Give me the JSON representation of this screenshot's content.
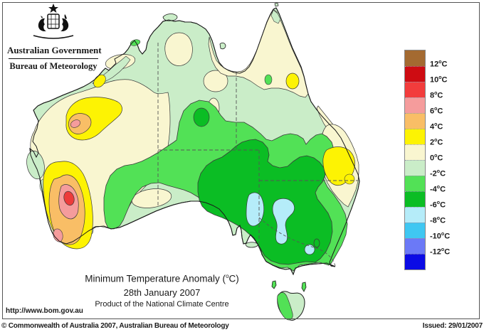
{
  "header": {
    "gov_title": "Australian Government",
    "bureau_title": "Bureau of Meteorology"
  },
  "titles": {
    "main_pre": "Minimum Temperature Anomaly (",
    "deg": "o",
    "main_post": "C)",
    "date": "28th January 2007",
    "product": "Product of the National Climate Centre"
  },
  "footer": {
    "url": "http://www.bom.gov.au",
    "copyright": "© Commonwealth of Australia 2007, Australian Bureau of Meteorology",
    "issued": "Issued: 29/01/2007"
  },
  "legend": {
    "deg": "o",
    "unit": "C",
    "labels": [
      "12",
      "10",
      "8",
      "6",
      "4",
      "2",
      "0",
      "-2",
      "-4",
      "-6",
      "-8",
      "-10",
      "-12"
    ],
    "colors": [
      "#A46A31",
      "#CE0C12",
      "#F23C3C",
      "#F59C9C",
      "#F9BE66",
      "#FDF303",
      "#F9F6D0",
      "#CAEDC8",
      "#52E156",
      "#0BBD24",
      "#B5ECF9",
      "#3FC7F2",
      "#6B79F7",
      "#0B0BE5"
    ]
  },
  "map": {
    "palette": {
      "cream": "#F9F6D0",
      "pale_green": "#CAEDC8",
      "light_green": "#52E156",
      "green": "#0BBD24",
      "cyan": "#B5ECF9",
      "yellow": "#FDF303",
      "orange": "#F9BE66",
      "pink": "#F59C9C",
      "red": "#ED3B3B",
      "coast_line": "#1a1a1a",
      "contour_line": "#3a3a3a",
      "border_line": "#555555"
    }
  }
}
